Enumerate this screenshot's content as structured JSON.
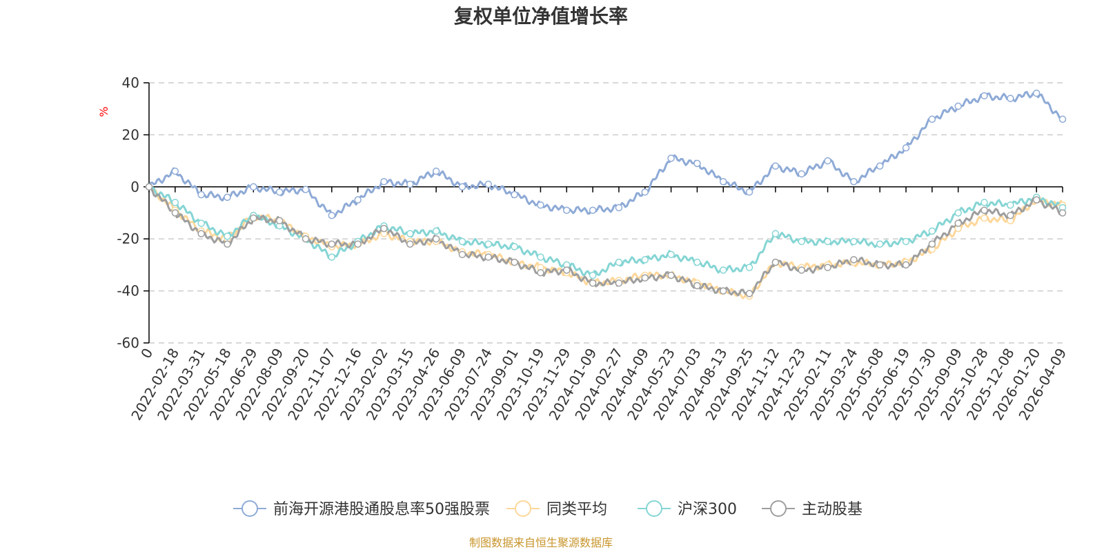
{
  "chart_data": {
    "type": "line",
    "title": "复权单位净值增长率",
    "ylabel": "%",
    "ylim": [
      -60,
      40
    ],
    "yticks": [
      40,
      20,
      0,
      -20,
      -40,
      -60
    ],
    "grid": true,
    "legend_position": "bottom",
    "source_note": "制图数据来自恒生聚源数据库",
    "categories": [
      "0",
      "2022-02-18",
      "2022-03-31",
      "2022-05-18",
      "2022-06-29",
      "2022-08-09",
      "2022-09-20",
      "2022-11-07",
      "2022-12-16",
      "2023-02-02",
      "2023-03-15",
      "2023-04-26",
      "2023-06-09",
      "2023-07-24",
      "2023-09-01",
      "2023-10-19",
      "2023-11-29",
      "2024-01-09",
      "2024-02-27",
      "2024-04-09",
      "2024-05-23",
      "2024-07-03",
      "2024-08-13",
      "2024-09-25",
      "2024-11-12",
      "2024-12-23",
      "2025-02-11",
      "2025-03-24",
      "2025-05-08",
      "2025-06-19",
      "2025-07-30",
      "2025-09-09",
      "2025-10-28",
      "2025-12-08",
      "2026-01-20",
      "2026-04-09"
    ],
    "series": [
      {
        "name": "前海开源港股通股息率50强股票",
        "color": "#8eaad6",
        "values": [
          0,
          6,
          -3,
          -4,
          0,
          -2,
          -1,
          -11,
          -5,
          2,
          1,
          6,
          0,
          1,
          -3,
          -7,
          -9,
          -9,
          -8,
          -2,
          11,
          9,
          2,
          -2,
          8,
          5,
          10,
          2,
          8,
          15,
          26,
          31,
          35,
          34,
          36,
          26
        ]
      },
      {
        "name": "同类平均",
        "color": "#fdd79a",
        "values": [
          0,
          -9,
          -17,
          -20,
          -11,
          -13,
          -19,
          -23,
          -22,
          -18,
          -21,
          -21,
          -25,
          -26,
          -29,
          -31,
          -33,
          -37,
          -36,
          -34,
          -34,
          -37,
          -40,
          -42,
          -29,
          -31,
          -30,
          -29,
          -30,
          -29,
          -24,
          -16,
          -12,
          -13,
          -5,
          -7
        ]
      },
      {
        "name": "沪深300",
        "color": "#85d5d4",
        "values": [
          0,
          -6,
          -14,
          -19,
          -11,
          -15,
          -20,
          -27,
          -21,
          -15,
          -18,
          -17,
          -21,
          -22,
          -23,
          -27,
          -30,
          -34,
          -29,
          -28,
          -26,
          -29,
          -32,
          -31,
          -18,
          -21,
          -21,
          -21,
          -22,
          -21,
          -17,
          -10,
          -6,
          -7,
          -4,
          -8
        ]
      },
      {
        "name": "主动股基",
        "color": "#9e9e9e",
        "values": [
          0,
          -10,
          -18,
          -22,
          -12,
          -13,
          -20,
          -22,
          -22,
          -16,
          -22,
          -20,
          -26,
          -27,
          -29,
          -33,
          -32,
          -37,
          -37,
          -35,
          -34,
          -38,
          -40,
          -41,
          -29,
          -32,
          -31,
          -28,
          -30,
          -30,
          -22,
          -14,
          -9,
          -11,
          -5,
          -10
        ]
      }
    ]
  }
}
